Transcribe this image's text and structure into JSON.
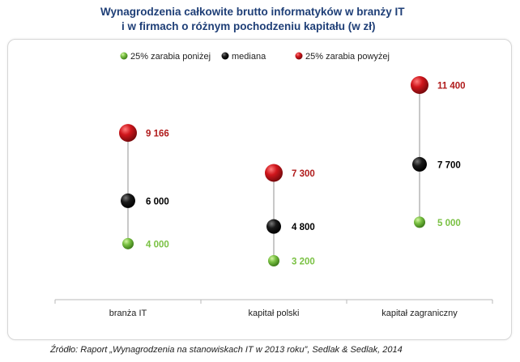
{
  "title_line1": "Wynagrodzenia całkowite brutto informatyków w branży IT",
  "title_line2": "i w firmach o różnym pochodzeniu kapitału (w zł)",
  "source": "Źródło: Raport „Wynagrodzenia na stanowiskach IT w 2013 roku”, Sedlak & Sedlak, 2014",
  "chart_data": {
    "type": "scatter",
    "categories": [
      "branża IT",
      "kapitał polski",
      "kapitał zagraniczny"
    ],
    "series": [
      {
        "name": "25% zarabia poniżej",
        "color": "#7ac143",
        "label_color": "#7ac143",
        "values": [
          4000,
          3200,
          5000
        ],
        "labels": [
          "4 000",
          "3 200",
          "5 000"
        ]
      },
      {
        "name": "mediana",
        "color": "#111111",
        "label_color": "#000000",
        "values": [
          6000,
          4800,
          7700
        ],
        "labels": [
          "6 000",
          "4 800",
          "7 700"
        ]
      },
      {
        "name": "25% zarabia powyżej",
        "color": "#c0141b",
        "label_color": "#b01b1b",
        "values": [
          9166,
          7300,
          11400
        ],
        "labels": [
          "9 166",
          "7 300",
          "11 400"
        ]
      }
    ],
    "ylim": [
      2000,
      12000
    ],
    "legend_position": "top",
    "grid": false
  }
}
